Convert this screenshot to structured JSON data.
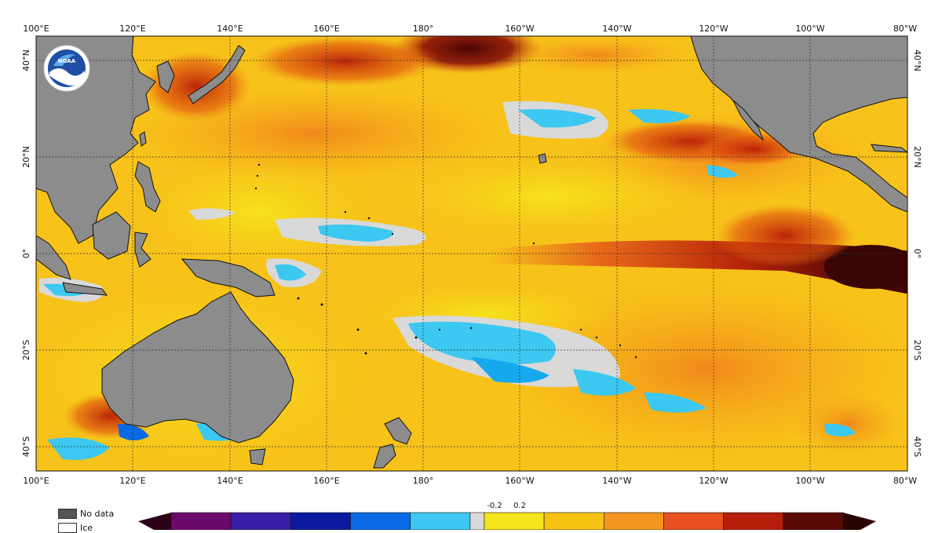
{
  "map": {
    "longitude_labels": [
      "100°E",
      "120°E",
      "140°E",
      "160°E",
      "180°",
      "160°W",
      "140°W",
      "120°W",
      "100°W",
      "80°W"
    ],
    "latitude_labels": [
      "40°N",
      "20°N",
      "0°",
      "20°S",
      "40°S"
    ],
    "logo_text": "NOAA",
    "colors": {
      "land": "#8c8c8c",
      "near_zero": "#d9d9d9",
      "graticule": "#333333"
    }
  },
  "legend": {
    "no_data_label": "No data",
    "ice_label": "Ice",
    "colorbar_tick_labels": [
      "-0.2",
      "0.2"
    ],
    "colorbar_colors": [
      "#2b0018",
      "#6a0a6a",
      "#3a1ea8",
      "#0a1aa0",
      "#0a6ae6",
      "#3cc8f0",
      "#d9d9d9",
      "#f4e41c",
      "#f8c214",
      "#f4961e",
      "#e85020",
      "#b41e0a",
      "#5a0a06",
      "#2a0403"
    ]
  }
}
